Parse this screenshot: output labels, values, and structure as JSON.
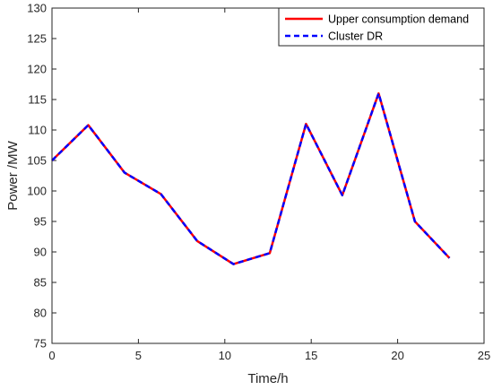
{
  "chart_data": {
    "type": "line",
    "title": "",
    "xlabel": "Time/h",
    "ylabel": "Power /MW",
    "xlim": [
      0,
      25
    ],
    "ylim": [
      75,
      130
    ],
    "xticks": [
      0,
      5,
      10,
      15,
      20,
      25
    ],
    "yticks": [
      75,
      80,
      85,
      90,
      95,
      100,
      105,
      110,
      115,
      120,
      125,
      130
    ],
    "grid": false,
    "legend_position": "top-right",
    "x": [
      0,
      2.1,
      4.2,
      6.3,
      8.4,
      10.5,
      12.6,
      14.7,
      16.8,
      18.9,
      21.0,
      23.0
    ],
    "series": [
      {
        "name": "Upper consumption demand",
        "color": "#ff0000",
        "style": "solid",
        "values": [
          105,
          110.8,
          103,
          99.5,
          91.8,
          88,
          89.8,
          111,
          99.3,
          116,
          95,
          89
        ]
      },
      {
        "name": "Cluster DR",
        "color": "#0000ff",
        "style": "dashed",
        "values": [
          105,
          110.8,
          103,
          99.5,
          91.8,
          88,
          89.8,
          111,
          99.3,
          116,
          95,
          89
        ]
      }
    ]
  }
}
